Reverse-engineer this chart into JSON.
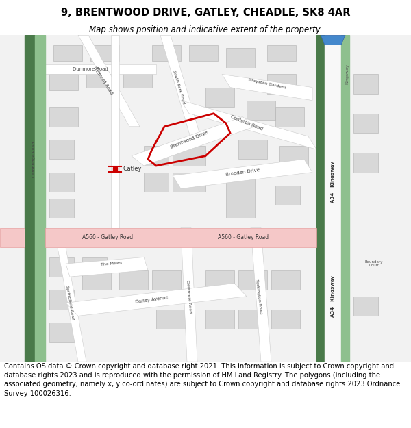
{
  "title": "9, BRENTWOOD DRIVE, GATLEY, CHEADLE, SK8 4AR",
  "subtitle": "Map shows position and indicative extent of the property.",
  "footer": "Contains OS data © Crown copyright and database right 2021. This information is subject to Crown copyright and database rights 2023 and is reproduced with the permission of HM Land Registry. The polygons (including the associated geometry, namely x, y co-ordinates) are subject to Crown copyright and database rights 2023 Ordnance Survey 100026316.",
  "bg_color": "#ffffff",
  "map_bg": "#f2f2f2",
  "road_color": "#ffffff",
  "road_outline": "#cccccc",
  "building_color": "#d8d8d8",
  "building_outline": "#b0b0b0",
  "pink_road_color": "#f5c8c8",
  "pink_road_outline": "#e8a0a0",
  "green_dark": "#4a7a4a",
  "green_light": "#8ec08e",
  "plot_color": "#cc0000",
  "title_fontsize": 10.5,
  "subtitle_fontsize": 8.5,
  "footer_fontsize": 7.2
}
